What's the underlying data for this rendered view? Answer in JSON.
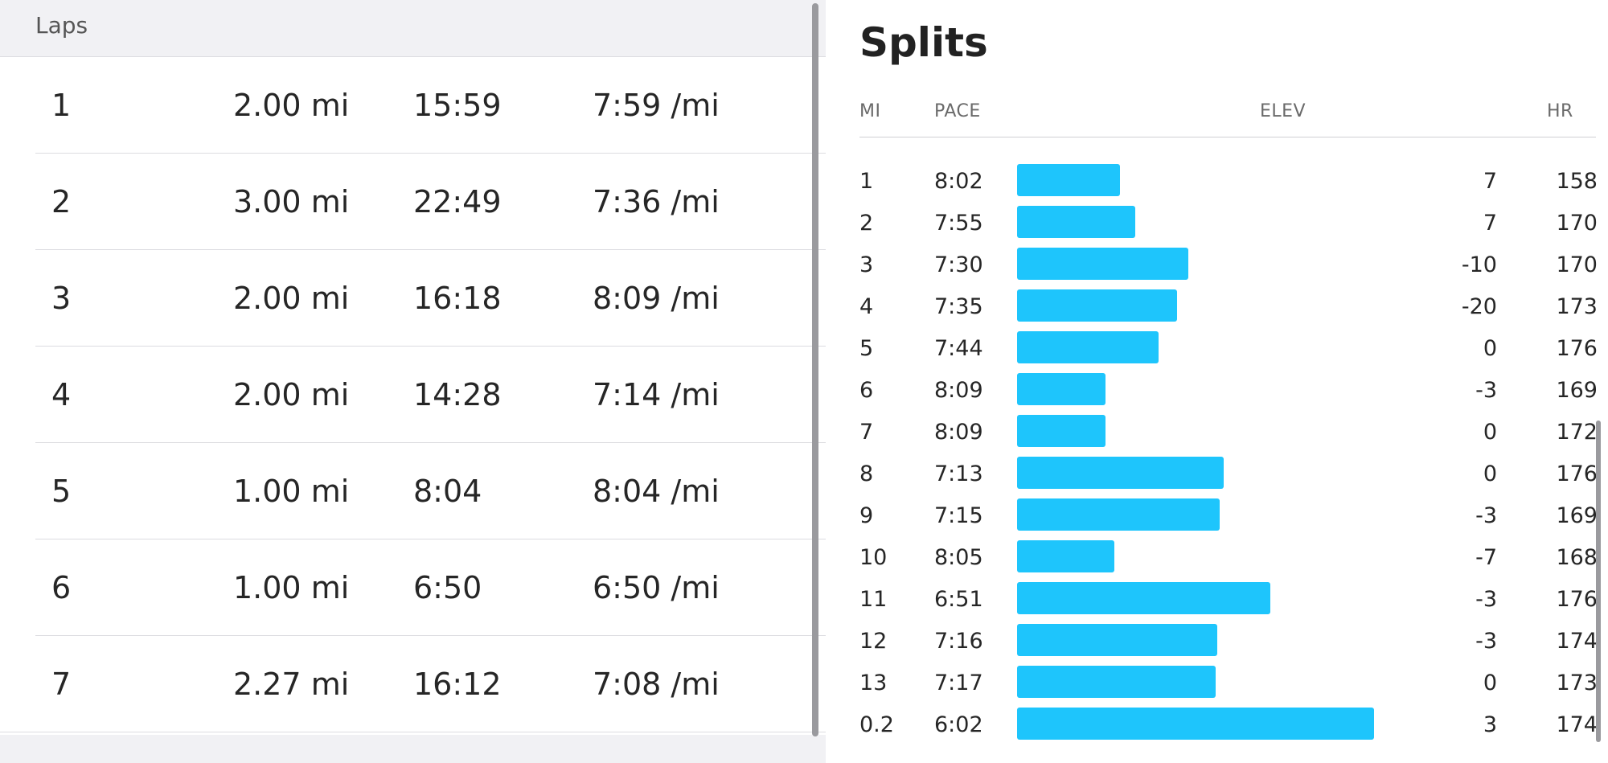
{
  "laps": {
    "title": "Laps",
    "rows": [
      {
        "lap": "1",
        "distance": "2.00 mi",
        "time": "15:59",
        "pace": "7:59 /mi"
      },
      {
        "lap": "2",
        "distance": "3.00 mi",
        "time": "22:49",
        "pace": "7:36 /mi"
      },
      {
        "lap": "3",
        "distance": "2.00 mi",
        "time": "16:18",
        "pace": "8:09 /mi"
      },
      {
        "lap": "4",
        "distance": "2.00 mi",
        "time": "14:28",
        "pace": "7:14 /mi"
      },
      {
        "lap": "5",
        "distance": "1.00 mi",
        "time": "8:04",
        "pace": "8:04 /mi"
      },
      {
        "lap": "6",
        "distance": "1.00 mi",
        "time": "6:50",
        "pace": "6:50 /mi"
      },
      {
        "lap": "7",
        "distance": "2.27 mi",
        "time": "16:12",
        "pace": "7:08 /mi"
      }
    ]
  },
  "splits": {
    "title": "Splits",
    "columns": {
      "mi": "MI",
      "pace": "PACE",
      "elev": "ELEV",
      "hr": "HR"
    },
    "bar_color": "#1ec5fc",
    "rows": [
      {
        "mi": "1",
        "pace": "8:02",
        "elev": "7",
        "hr": "158"
      },
      {
        "mi": "2",
        "pace": "7:55",
        "elev": "7",
        "hr": "170"
      },
      {
        "mi": "3",
        "pace": "7:30",
        "elev": "-10",
        "hr": "170"
      },
      {
        "mi": "4",
        "pace": "7:35",
        "elev": "-20",
        "hr": "173"
      },
      {
        "mi": "5",
        "pace": "7:44",
        "elev": "0",
        "hr": "176"
      },
      {
        "mi": "6",
        "pace": "8:09",
        "elev": "-3",
        "hr": "169"
      },
      {
        "mi": "7",
        "pace": "8:09",
        "elev": "0",
        "hr": "172"
      },
      {
        "mi": "8",
        "pace": "7:13",
        "elev": "0",
        "hr": "176"
      },
      {
        "mi": "9",
        "pace": "7:15",
        "elev": "-3",
        "hr": "169"
      },
      {
        "mi": "10",
        "pace": "8:05",
        "elev": "-7",
        "hr": "168"
      },
      {
        "mi": "11",
        "pace": "6:51",
        "elev": "-3",
        "hr": "176"
      },
      {
        "mi": "12",
        "pace": "7:16",
        "elev": "-3",
        "hr": "174"
      },
      {
        "mi": "13",
        "pace": "7:17",
        "elev": "0",
        "hr": "173"
      },
      {
        "mi": "0.2",
        "pace": "6:02",
        "elev": "3",
        "hr": "174"
      }
    ]
  }
}
